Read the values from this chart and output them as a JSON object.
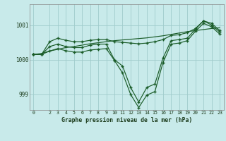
{
  "background_color": "#c8eaea",
  "grid_color": "#a0cccc",
  "line_color": "#1a5c28",
  "title": "Graphe pression niveau de la mer (hPa)",
  "xlim": [
    -0.5,
    23.5
  ],
  "ylim": [
    998.55,
    1001.6
  ],
  "yticks": [
    999,
    1000,
    1001
  ],
  "xticks": [
    0,
    2,
    3,
    4,
    5,
    6,
    7,
    8,
    9,
    10,
    11,
    12,
    13,
    14,
    15,
    16,
    17,
    18,
    19,
    20,
    21,
    22,
    23
  ],
  "hours": [
    0,
    1,
    2,
    3,
    4,
    5,
    6,
    7,
    8,
    9,
    10,
    11,
    12,
    13,
    14,
    15,
    16,
    17,
    18,
    19,
    20,
    21,
    22,
    23
  ],
  "line_main": [
    1000.15,
    1000.15,
    1000.38,
    1000.45,
    1000.38,
    1000.35,
    1000.35,
    1000.42,
    1000.45,
    1000.45,
    1000.0,
    999.82,
    999.2,
    998.78,
    999.2,
    999.3,
    1000.05,
    1000.55,
    1000.58,
    1000.62,
    1000.88,
    1001.12,
    1001.0,
    1000.8
  ],
  "line_max": [
    1000.15,
    1000.15,
    1000.52,
    1000.62,
    1000.56,
    1000.52,
    1000.52,
    1000.56,
    1000.58,
    1000.58,
    1000.52,
    1000.5,
    1000.48,
    1000.46,
    1000.48,
    1000.52,
    1000.58,
    1000.7,
    1000.72,
    1000.78,
    1000.9,
    1001.12,
    1001.05,
    1000.84
  ],
  "line_min": [
    1000.15,
    1000.15,
    1000.25,
    1000.32,
    1000.26,
    1000.22,
    1000.22,
    1000.28,
    1000.3,
    1000.32,
    999.98,
    999.62,
    999.0,
    998.62,
    998.98,
    999.08,
    999.92,
    1000.45,
    1000.48,
    1000.55,
    1000.82,
    1001.05,
    1000.95,
    1000.74
  ],
  "line_trend": [
    1000.15,
    1000.18,
    1000.25,
    1000.3,
    1000.35,
    1000.38,
    1000.42,
    1000.46,
    1000.49,
    1000.52,
    1000.55,
    1000.57,
    1000.59,
    1000.61,
    1000.63,
    1000.66,
    1000.69,
    1000.73,
    1000.77,
    1000.81,
    1000.84,
    1000.87,
    1000.9,
    1000.92
  ]
}
